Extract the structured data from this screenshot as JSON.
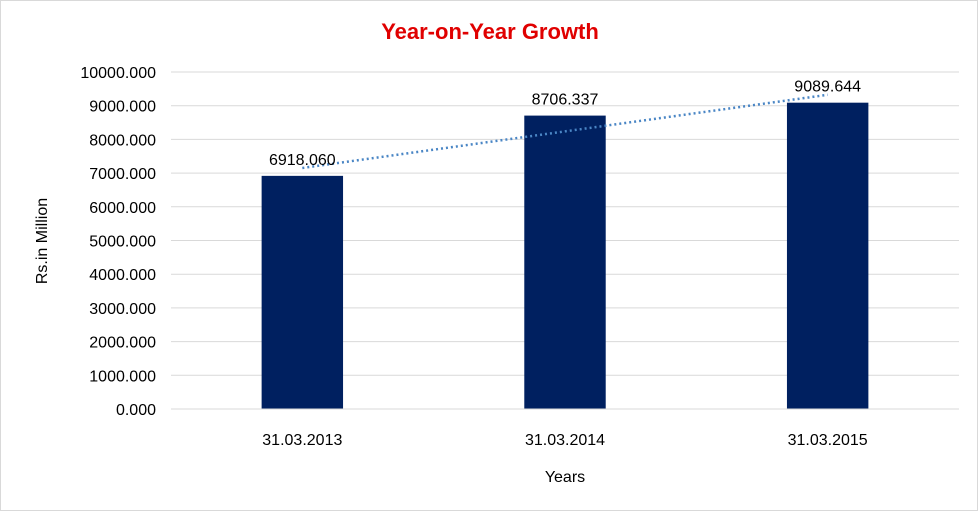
{
  "chart_data": {
    "type": "bar",
    "title": "Year-on-Year Growth",
    "xlabel": "Years",
    "ylabel": "Rs.in Million",
    "categories": [
      "31.03.2013",
      "31.03.2014",
      "31.03.2015"
    ],
    "values": [
      6918.06,
      8706.337,
      9089.644
    ],
    "data_labels": [
      "6918.060",
      "8706.337",
      "9089.644"
    ],
    "ylim": [
      0,
      10000
    ],
    "yticks": [
      0,
      1000,
      2000,
      3000,
      4000,
      5000,
      6000,
      7000,
      8000,
      9000,
      10000
    ],
    "ytick_labels": [
      "0.000",
      "1000.000",
      "2000.000",
      "3000.000",
      "4000.000",
      "5000.000",
      "6000.000",
      "7000.000",
      "8000.000",
      "9000.000",
      "10000.000"
    ],
    "grid": true,
    "trendline": "linear",
    "legend": "none",
    "colors": {
      "bar": "#002060",
      "title": "#e00000",
      "trendline": "#4a86c5",
      "grid": "#d9d9d9"
    }
  }
}
